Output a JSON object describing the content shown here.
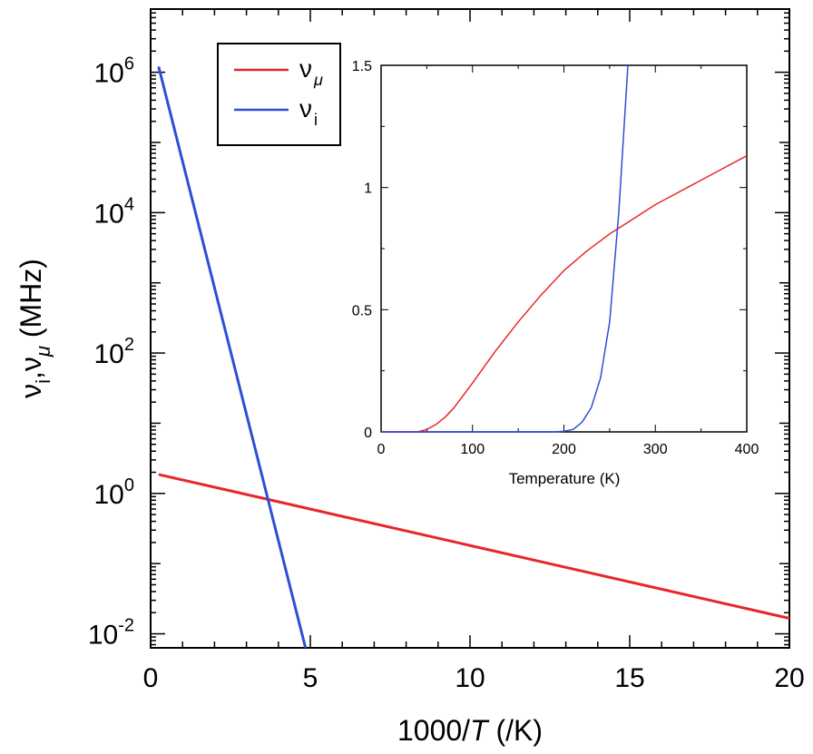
{
  "chart_data": [
    {
      "id": "main",
      "type": "line",
      "xlabel": {
        "text": "1000/",
        "italic": "T",
        "rest": " (/K)"
      },
      "ylabel": {
        "pre": "ν",
        "sub1": "i",
        "mid": ",ν",
        "sub2": "μ",
        "rest": " (MHz)"
      },
      "x_scale": "linear",
      "y_scale": "log",
      "xlim": [
        0,
        20
      ],
      "ylim_log10": [
        -2.2,
        6.9
      ],
      "x_ticks": [
        0,
        5,
        10,
        15,
        20
      ],
      "x_tick_labels": [
        "0",
        "5",
        "10",
        "15",
        "20"
      ],
      "y_ticks_log10": [
        -2,
        0,
        2,
        4,
        6
      ],
      "y_tick_labels": [
        {
          "base": "10",
          "exp": "-2"
        },
        {
          "base": "10",
          "exp": "0"
        },
        {
          "base": "10",
          "exp": "2"
        },
        {
          "base": "10",
          "exp": "4"
        },
        {
          "base": "10",
          "exp": "6"
        }
      ],
      "series": [
        {
          "name": "nu_mu",
          "color": "#e8262a",
          "x": [
            0.25,
            20.0
          ],
          "y_log10": [
            0.27,
            -1.78
          ]
        },
        {
          "name": "nu_i",
          "color": "#2c4fd6",
          "x": [
            0.25,
            4.85
          ],
          "y_log10": [
            6.08,
            -2.2
          ]
        }
      ],
      "legend": {
        "location": "top-left",
        "entries": [
          {
            "symbol": "ν",
            "sub": "μ",
            "color": "#e8262a",
            "sub_italic": true
          },
          {
            "symbol": "ν",
            "sub": "i",
            "color": "#2c4fd6",
            "sub_italic": false
          }
        ]
      }
    },
    {
      "id": "inset",
      "type": "line",
      "xlabel": "Temperature (K)",
      "ylabel": "",
      "xlim": [
        0,
        400
      ],
      "ylim": [
        0,
        1.5
      ],
      "x_ticks": [
        0,
        100,
        200,
        300,
        400
      ],
      "x_tick_labels": [
        "0",
        "100",
        "200",
        "300",
        "400"
      ],
      "y_ticks": [
        0,
        0.5,
        1,
        1.5
      ],
      "y_tick_labels": [
        "0",
        "0.5",
        "1",
        "1.5"
      ],
      "series": [
        {
          "name": "nu_mu",
          "color": "#e8262a",
          "x": [
            0,
            40,
            50,
            60,
            70,
            80,
            100,
            125,
            150,
            175,
            200,
            225,
            250,
            275,
            300,
            325,
            350,
            375,
            400
          ],
          "y": [
            0,
            0,
            0.01,
            0.03,
            0.06,
            0.1,
            0.2,
            0.33,
            0.45,
            0.56,
            0.66,
            0.74,
            0.81,
            0.87,
            0.93,
            0.98,
            1.03,
            1.08,
            1.13
          ]
        },
        {
          "name": "nu_i",
          "color": "#2c4fd6",
          "x": [
            0,
            190,
            200,
            210,
            220,
            230,
            240,
            250,
            260,
            265,
            270
          ],
          "y": [
            0,
            0,
            0.003,
            0.01,
            0.04,
            0.1,
            0.22,
            0.45,
            0.9,
            1.2,
            1.5
          ]
        }
      ]
    }
  ]
}
